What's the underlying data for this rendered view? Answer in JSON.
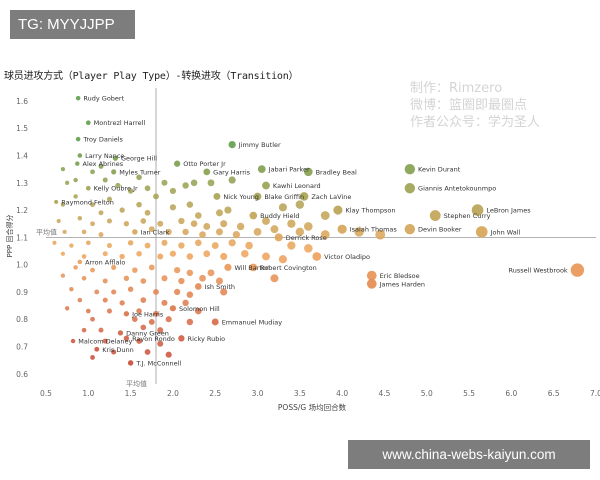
{
  "tg_badge": "TG: MYYJJPP",
  "site_badge": "www.china-webs-kaiyun.com",
  "watermark": [
    "制作：Rimzero",
    "微博：篮圈即最圈点",
    "作者公众号：学为圣人"
  ],
  "chart_data": {
    "type": "scatter",
    "title": "球员进攻方式（Player Play Type）-转换进攻（Transition）",
    "xlabel": "POSS/G 场均回合数",
    "ylabel": "PPP 回合得分",
    "xlim": [
      0.5,
      7.0
    ],
    "ylim": [
      0.57,
      1.64
    ],
    "xticks": [
      "0.5",
      "1.0",
      "1.5",
      "2.0",
      "2.5",
      "3.0",
      "3.5",
      "4.0",
      "4.5",
      "5.0",
      "5.5",
      "6.0",
      "6.5",
      "7.0"
    ],
    "yticks": [
      "0.6",
      "0.7",
      "0.8",
      "0.9",
      "1.0",
      "1.1",
      "1.2",
      "1.3",
      "1.4",
      "1.5",
      "1.6"
    ],
    "grid": false,
    "reference_lines": {
      "x": 1.8,
      "y": 1.1,
      "x_label": "平均值",
      "y_label": "平均值"
    },
    "color_scale": {
      "low": "#c84a3a",
      "mid": "#f0a55a",
      "high": "#5e9e4a"
    },
    "labeled_points": [
      {
        "name": "Rudy Gobert",
        "x": 0.88,
        "y": 1.61
      },
      {
        "name": "Montrezl Harrell",
        "x": 1.0,
        "y": 1.52
      },
      {
        "name": "Troy Daniels",
        "x": 0.88,
        "y": 1.46
      },
      {
        "name": "Larry Nance",
        "x": 0.9,
        "y": 1.4
      },
      {
        "name": "Alex Abrines",
        "x": 0.87,
        "y": 1.37
      },
      {
        "name": "George Hill",
        "x": 1.32,
        "y": 1.39
      },
      {
        "name": "Myles Turner",
        "x": 1.3,
        "y": 1.34
      },
      {
        "name": "Otto Porter Jr",
        "x": 2.05,
        "y": 1.37
      },
      {
        "name": "Kelly Oubre Jr",
        "x": 1.0,
        "y": 1.28
      },
      {
        "name": "Jimmy Butler",
        "x": 2.7,
        "y": 1.44
      },
      {
        "name": "Gary Harris",
        "x": 2.4,
        "y": 1.34
      },
      {
        "name": "Jabari Parker",
        "x": 3.05,
        "y": 1.35
      },
      {
        "name": "Bradley Beal",
        "x": 3.6,
        "y": 1.34
      },
      {
        "name": "Kawhi Leonard",
        "x": 3.1,
        "y": 1.29
      },
      {
        "name": "Kevin Durant",
        "x": 4.8,
        "y": 1.35
      },
      {
        "name": "Raymond Felton",
        "x": 0.62,
        "y": 1.23
      },
      {
        "name": "Nick Young",
        "x": 2.52,
        "y": 1.25
      },
      {
        "name": "Blake Griffin",
        "x": 3.0,
        "y": 1.25
      },
      {
        "name": "Zach LaVine",
        "x": 3.55,
        "y": 1.25
      },
      {
        "name": "Giannis Antetokounmpo",
        "x": 4.8,
        "y": 1.28
      },
      {
        "name": "Klay Thompson",
        "x": 3.95,
        "y": 1.2
      },
      {
        "name": "Buddy Hield",
        "x": 2.95,
        "y": 1.18
      },
      {
        "name": "LeBron James",
        "x": 5.6,
        "y": 1.2
      },
      {
        "name": "Stephen Curry",
        "x": 5.1,
        "y": 1.18
      },
      {
        "name": "Isaiah Thomas",
        "x": 4.0,
        "y": 1.13
      },
      {
        "name": "Ian Clark",
        "x": 1.55,
        "y": 1.12
      },
      {
        "name": "Devin Booker",
        "x": 4.8,
        "y": 1.13
      },
      {
        "name": "John Wall",
        "x": 5.65,
        "y": 1.12
      },
      {
        "name": "Derrick Rose",
        "x": 3.25,
        "y": 1.1
      },
      {
        "name": "Arron Afflalo",
        "x": 0.9,
        "y": 1.01
      },
      {
        "name": "Victor Oladipo",
        "x": 3.7,
        "y": 1.03
      },
      {
        "name": "Will Barton",
        "x": 2.65,
        "y": 0.99
      },
      {
        "name": "Robert Covington",
        "x": 2.95,
        "y": 0.99
      },
      {
        "name": "Eric Bledsoe",
        "x": 4.35,
        "y": 0.96
      },
      {
        "name": "Russell Westbrook",
        "x": 6.78,
        "y": 0.98
      },
      {
        "name": "James Harden",
        "x": 4.35,
        "y": 0.93
      },
      {
        "name": "Ish Smith",
        "x": 2.3,
        "y": 0.92
      },
      {
        "name": "Joe Harris",
        "x": 1.45,
        "y": 0.82
      },
      {
        "name": "Solomon Hill",
        "x": 2.0,
        "y": 0.84
      },
      {
        "name": "Danny Green",
        "x": 1.38,
        "y": 0.75
      },
      {
        "name": "Emmanuel Mudiay",
        "x": 2.5,
        "y": 0.79
      },
      {
        "name": "Ricky Rubio",
        "x": 2.1,
        "y": 0.73
      },
      {
        "name": "Rayon Rondo",
        "x": 1.45,
        "y": 0.73
      },
      {
        "name": "Malcom Delaney",
        "x": 0.82,
        "y": 0.72
      },
      {
        "name": "Kris Dunn",
        "x": 1.1,
        "y": 0.69
      },
      {
        "name": "T.J. McConnell",
        "x": 1.5,
        "y": 0.64
      }
    ],
    "unlabeled_points": [
      [
        0.7,
        1.35
      ],
      [
        0.75,
        1.3
      ],
      [
        0.85,
        1.31
      ],
      [
        1.05,
        1.34
      ],
      [
        1.15,
        1.36
      ],
      [
        1.2,
        1.31
      ],
      [
        1.35,
        1.29
      ],
      [
        1.5,
        1.27
      ],
      [
        1.6,
        1.32
      ],
      [
        1.7,
        1.28
      ],
      [
        1.9,
        1.3
      ],
      [
        2.0,
        1.27
      ],
      [
        2.15,
        1.29
      ],
      [
        2.25,
        1.3
      ],
      [
        2.45,
        1.3
      ],
      [
        2.7,
        1.31
      ],
      [
        1.8,
        1.25
      ],
      [
        1.25,
        1.24
      ],
      [
        1.05,
        1.22
      ],
      [
        0.7,
        1.22
      ],
      [
        0.85,
        1.25
      ],
      [
        1.15,
        1.19
      ],
      [
        1.4,
        1.2
      ],
      [
        1.6,
        1.22
      ],
      [
        1.7,
        1.19
      ],
      [
        2.0,
        1.21
      ],
      [
        2.2,
        1.22
      ],
      [
        2.3,
        1.18
      ],
      [
        2.55,
        1.19
      ],
      [
        2.65,
        1.2
      ],
      [
        3.3,
        1.21
      ],
      [
        3.5,
        1.22
      ],
      [
        3.8,
        1.18
      ],
      [
        0.65,
        1.16
      ],
      [
        0.9,
        1.17
      ],
      [
        1.05,
        1.15
      ],
      [
        1.25,
        1.16
      ],
      [
        1.45,
        1.15
      ],
      [
        1.65,
        1.16
      ],
      [
        1.85,
        1.15
      ],
      [
        2.1,
        1.16
      ],
      [
        2.25,
        1.15
      ],
      [
        2.4,
        1.14
      ],
      [
        2.6,
        1.15
      ],
      [
        2.8,
        1.14
      ],
      [
        3.1,
        1.16
      ],
      [
        3.4,
        1.15
      ],
      [
        3.6,
        1.14
      ],
      [
        0.72,
        1.12
      ],
      [
        0.95,
        1.12
      ],
      [
        1.15,
        1.11
      ],
      [
        1.75,
        1.13
      ],
      [
        1.95,
        1.12
      ],
      [
        2.15,
        1.12
      ],
      [
        2.35,
        1.11
      ],
      [
        2.55,
        1.12
      ],
      [
        2.75,
        1.11
      ],
      [
        3.0,
        1.12
      ],
      [
        3.2,
        1.13
      ],
      [
        3.5,
        1.12
      ],
      [
        3.8,
        1.11
      ],
      [
        4.2,
        1.12
      ],
      [
        4.45,
        1.11
      ],
      [
        0.6,
        1.08
      ],
      [
        0.8,
        1.07
      ],
      [
        1.0,
        1.08
      ],
      [
        1.25,
        1.07
      ],
      [
        1.5,
        1.08
      ],
      [
        1.7,
        1.07
      ],
      [
        1.9,
        1.08
      ],
      [
        2.1,
        1.07
      ],
      [
        2.3,
        1.08
      ],
      [
        2.5,
        1.07
      ],
      [
        2.7,
        1.08
      ],
      [
        2.9,
        1.07
      ],
      [
        3.4,
        1.07
      ],
      [
        3.6,
        1.06
      ],
      [
        0.7,
        1.04
      ],
      [
        0.95,
        1.03
      ],
      [
        1.2,
        1.04
      ],
      [
        1.4,
        1.03
      ],
      [
        1.6,
        1.04
      ],
      [
        1.85,
        1.03
      ],
      [
        2.0,
        1.04
      ],
      [
        2.2,
        1.03
      ],
      [
        2.4,
        1.04
      ],
      [
        2.6,
        1.03
      ],
      [
        2.85,
        1.04
      ],
      [
        3.1,
        1.03
      ],
      [
        3.3,
        1.02
      ],
      [
        0.85,
        0.99
      ],
      [
        1.05,
        0.98
      ],
      [
        1.3,
        0.99
      ],
      [
        1.55,
        0.98
      ],
      [
        1.75,
        0.99
      ],
      [
        2.05,
        0.98
      ],
      [
        2.2,
        0.97
      ],
      [
        2.45,
        0.97
      ],
      [
        0.7,
        0.96
      ],
      [
        0.95,
        0.95
      ],
      [
        1.2,
        0.94
      ],
      [
        1.45,
        0.95
      ],
      [
        1.65,
        0.94
      ],
      [
        1.9,
        0.95
      ],
      [
        2.1,
        0.94
      ],
      [
        2.35,
        0.95
      ],
      [
        2.55,
        0.94
      ],
      [
        3.2,
        0.95
      ],
      [
        0.8,
        0.91
      ],
      [
        1.1,
        0.9
      ],
      [
        1.3,
        0.9
      ],
      [
        1.5,
        0.91
      ],
      [
        1.8,
        0.9
      ],
      [
        2.05,
        0.9
      ],
      [
        2.2,
        0.89
      ],
      [
        2.6,
        0.9
      ],
      [
        0.9,
        0.87
      ],
      [
        1.2,
        0.87
      ],
      [
        1.4,
        0.86
      ],
      [
        1.65,
        0.87
      ],
      [
        1.9,
        0.86
      ],
      [
        2.15,
        0.86
      ],
      [
        0.75,
        0.84
      ],
      [
        1.0,
        0.83
      ],
      [
        1.25,
        0.83
      ],
      [
        1.6,
        0.83
      ],
      [
        1.8,
        0.82
      ],
      [
        2.3,
        0.83
      ],
      [
        1.05,
        0.8
      ],
      [
        1.55,
        0.8
      ],
      [
        1.75,
        0.79
      ],
      [
        1.95,
        0.8
      ],
      [
        2.2,
        0.79
      ],
      [
        0.95,
        0.76
      ],
      [
        1.15,
        0.76
      ],
      [
        1.65,
        0.77
      ],
      [
        1.85,
        0.76
      ],
      [
        1.2,
        0.72
      ],
      [
        1.6,
        0.72
      ],
      [
        1.85,
        0.71
      ],
      [
        1.3,
        0.68
      ],
      [
        1.7,
        0.68
      ],
      [
        1.05,
        0.66
      ],
      [
        1.95,
        0.67
      ]
    ]
  }
}
